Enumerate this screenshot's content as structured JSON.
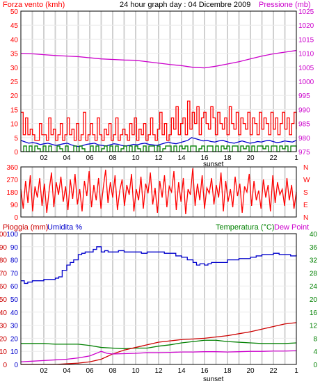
{
  "colors": {
    "red": "#ff0000",
    "blue": "#0000cc",
    "magenta": "#cc00cc",
    "green": "#008000",
    "darkred": "#cc0000",
    "grid": "#d0d0d0",
    "frame": "#000000"
  },
  "chart_data": [
    {
      "type": "line",
      "id": "wind_pressure",
      "title": "24 hour graph day : 04 Dicembre 2009",
      "left_label": "Forza vento (kmh)",
      "right_label": "Pressione (mb)",
      "x_label_marker": "sunset",
      "x_ticks": [
        "02",
        "04",
        "06",
        "08",
        "10",
        "12",
        "14",
        "16",
        "18",
        "20",
        "22",
        "1"
      ],
      "left_ticks": [
        "0",
        "5",
        "10",
        "15",
        "20",
        "25",
        "30",
        "35",
        "40",
        "45",
        "50"
      ],
      "right_ticks": [
        "975",
        "980",
        "985",
        "990",
        "995",
        "1000",
        "1005",
        "1010",
        "1015",
        "1020",
        "1025"
      ],
      "left_range": [
        0,
        50
      ],
      "right_range": [
        975,
        1025
      ],
      "series": [
        {
          "axis": "right",
          "style": "line",
          "color": "#cc00cc",
          "x": [
            0,
            1,
            2,
            3,
            4,
            5,
            6,
            7,
            8,
            9,
            10,
            11,
            12,
            13,
            14,
            15,
            16,
            17,
            18,
            19,
            20,
            21,
            22,
            23,
            24
          ],
          "values": [
            1010,
            1009.8,
            1009.5,
            1009.2,
            1009,
            1008.8,
            1008.4,
            1008,
            1007.8,
            1007.6,
            1007.5,
            1007,
            1006.5,
            1006,
            1005.6,
            1005,
            1004.8,
            1005.4,
            1006.2,
            1007,
            1008,
            1009,
            1009.8,
            1010.4,
            1011
          ]
        },
        {
          "axis": "left",
          "style": "step",
          "color": "#ff0000",
          "x_start": 0,
          "x_end": 24,
          "values": [
            14,
            6,
            12,
            6,
            8,
            6,
            4,
            4,
            10,
            6,
            6,
            4,
            12,
            6,
            8,
            4,
            6,
            10,
            4,
            6,
            12,
            6,
            8,
            4,
            10,
            4,
            6,
            14,
            4,
            6,
            10,
            6,
            4,
            12,
            6,
            4,
            8,
            6,
            10,
            4,
            6,
            12,
            4,
            6,
            8,
            6,
            4,
            10,
            6,
            12,
            4,
            8,
            6,
            10,
            4,
            6,
            12,
            6,
            4,
            8,
            14,
            6,
            10,
            4,
            6,
            12,
            8,
            16,
            6,
            10,
            12,
            6,
            18,
            8,
            14,
            10,
            16,
            6,
            12,
            14,
            10,
            8,
            16,
            12,
            6,
            14,
            10,
            8,
            12,
            6,
            16,
            10,
            8,
            14,
            6,
            12,
            10,
            8,
            14,
            6,
            12,
            10,
            6,
            14,
            8,
            12,
            10,
            6,
            14,
            8,
            12,
            6,
            10,
            14,
            8,
            12,
            6,
            10,
            14,
            8
          ]
        },
        {
          "axis": "left",
          "style": "line",
          "color": "#0000cc",
          "x_start": 0,
          "x_end": 24,
          "values": [
            4,
            3.5,
            3,
            3.2,
            3,
            2.5,
            2.8,
            3,
            2.6,
            2.2,
            2.5,
            2.8,
            3,
            2.4,
            2,
            1.8,
            2.2,
            2.6,
            2.8,
            3,
            2.4,
            2.2,
            2,
            2.4,
            2.8,
            2.6,
            2.2,
            2,
            2.2,
            2.6,
            2.4,
            2.8,
            3,
            2.6,
            2.4,
            2.2,
            2.6,
            3,
            3.4,
            3,
            2.8,
            3.2,
            3.6,
            4,
            5,
            4.6,
            4.2,
            3.8,
            4,
            3.6,
            3.4,
            3.8,
            4,
            3.6,
            3.2,
            3,
            3.4,
            3.8,
            3.4,
            3,
            3.2,
            3.6,
            3.4,
            3.8,
            4,
            3.6,
            3.2,
            3.4,
            3.8,
            3.6,
            3.4,
            4
          ]
        },
        {
          "axis": "left",
          "style": "step",
          "color": "#008000",
          "x_start": 0,
          "x_end": 24,
          "values": [
            0,
            2,
            0,
            2,
            0,
            2,
            1,
            0,
            2,
            0,
            2,
            0,
            0,
            2,
            1,
            0,
            2,
            0,
            0,
            2,
            0,
            2,
            1,
            0,
            0,
            2,
            0,
            2,
            0,
            1,
            2,
            0,
            2,
            0,
            2,
            0,
            1,
            2,
            0,
            2,
            0,
            2,
            1,
            0,
            2,
            0,
            2,
            2,
            0,
            2,
            0,
            1,
            2,
            2,
            0,
            2,
            0,
            2,
            1,
            2,
            0,
            2,
            2,
            0,
            1,
            2,
            0,
            2,
            2,
            0,
            2,
            0,
            2,
            1,
            2,
            0,
            2,
            2,
            0,
            2,
            1,
            2,
            0,
            2,
            0,
            2,
            2,
            1,
            2,
            0,
            2,
            2,
            0,
            2,
            1,
            2,
            0,
            2,
            2,
            0
          ]
        }
      ]
    },
    {
      "type": "line",
      "id": "direction",
      "left_ticks": [
        "0",
        "90",
        "180",
        "270",
        "360"
      ],
      "right_ticks": [
        "N",
        "E",
        "S",
        "W",
        "N"
      ],
      "left_range": [
        0,
        360
      ],
      "x_ticks": [],
      "series": [
        {
          "axis": "left",
          "style": "line",
          "color": "#ff0000",
          "x_start": 0,
          "x_end": 24,
          "values": [
            200,
            60,
            260,
            100,
            300,
            40,
            220,
            140,
            280,
            80,
            240,
            30,
            190,
            320,
            70,
            250,
            160,
            290,
            110,
            220,
            50,
            270,
            130,
            310,
            90,
            200,
            40,
            260,
            150,
            330,
            70,
            230,
            120,
            280,
            60,
            210,
            340,
            100,
            250,
            140,
            300,
            50,
            190,
            270,
            80,
            230,
            160,
            310,
            40,
            200,
            120,
            290,
            60,
            240,
            170,
            320,
            90,
            210,
            30,
            260,
            140,
            300,
            70,
            220,
            180,
            330,
            50,
            250,
            110,
            280,
            20,
            200,
            160,
            350,
            80,
            240,
            120,
            300,
            60,
            210,
            170,
            280,
            90,
            230,
            140,
            320,
            40,
            260,
            110,
            200,
            70,
            290,
            150,
            240,
            30,
            220,
            180,
            310,
            80,
            260,
            120,
            190,
            60,
            270,
            140,
            230,
            40,
            300,
            100,
            250,
            160,
            200,
            80,
            280,
            120,
            230,
            60,
            180
          ]
        }
      ]
    },
    {
      "type": "line",
      "id": "rain_hum_temp",
      "left_label_1": "Pioggia (mm)",
      "left_label_2": "Umidita %",
      "right_label_1": "Temperatura (°C)",
      "right_label_2": "Dew Point",
      "x_label_marker": "sunset",
      "x_ticks": [
        "02",
        "04",
        "06",
        "08",
        "10",
        "12",
        "14",
        "16",
        "18",
        "20",
        "22",
        "1"
      ],
      "left_ticks_rain": [
        "0",
        "10",
        "20",
        "30",
        "40",
        "50",
        "60",
        "70",
        "80",
        "90",
        "100"
      ],
      "left_ticks_hum": [
        "0",
        "10",
        "20",
        "30",
        "40",
        "50",
        "60",
        "70",
        "80",
        "90",
        "100"
      ],
      "right_ticks": [
        "0",
        "4",
        "8",
        "12",
        "16",
        "20",
        "24",
        "28",
        "32",
        "36",
        "40"
      ],
      "left_range": [
        0,
        100
      ],
      "right_range": [
        0,
        40
      ],
      "series": [
        {
          "axis": "left",
          "style": "step",
          "color": "#0000cc",
          "name_hint": "humidity",
          "x": [
            0,
            0.3,
            0.6,
            1,
            1.5,
            2,
            2.5,
            3,
            3.3,
            3.6,
            4,
            4.3,
            4.6,
            5,
            5.3,
            5.6,
            6,
            6.3,
            6.6,
            7,
            7.3,
            7.6,
            8,
            8.5,
            9,
            9.5,
            10,
            10.5,
            11,
            11.5,
            12,
            12.5,
            13,
            13.5,
            14,
            14.5,
            15,
            15.3,
            15.6,
            16,
            16.3,
            16.6,
            17,
            17.5,
            18,
            18.5,
            19,
            19.5,
            20,
            20.5,
            21,
            21.5,
            22,
            22.5,
            23,
            23.5,
            24
          ],
          "values": [
            64,
            62,
            63,
            64,
            64,
            65,
            65,
            66,
            67,
            72,
            76,
            78,
            80,
            84,
            85,
            86,
            86,
            88,
            90,
            86,
            87,
            86,
            86,
            87,
            86,
            86,
            86,
            85,
            86,
            86,
            86,
            85,
            85,
            83,
            82,
            80,
            78,
            76,
            77,
            76,
            77,
            78,
            78,
            78,
            80,
            80,
            81,
            81,
            82,
            83,
            84,
            84,
            85,
            84,
            84,
            83,
            84
          ]
        },
        {
          "axis": "right",
          "style": "line",
          "color": "#008000",
          "name_hint": "temperature",
          "x": [
            0,
            1,
            2,
            3,
            4,
            5,
            6,
            7,
            8,
            9,
            10,
            11,
            12,
            13,
            14,
            15,
            16,
            17,
            18,
            19,
            20,
            21,
            22,
            23,
            24
          ],
          "values": [
            6.4,
            6.4,
            6.4,
            6.2,
            6.2,
            6.2,
            5.8,
            5.2,
            5,
            4.8,
            5,
            5,
            5.6,
            6,
            6.6,
            7,
            7.4,
            7.4,
            7,
            6.8,
            6.6,
            6.4,
            6.4,
            6.4,
            6.6
          ]
        },
        {
          "axis": "left",
          "style": "line",
          "color": "#cc0000",
          "name_hint": "rain",
          "x": [
            0,
            1,
            2,
            3,
            4,
            5,
            6,
            7,
            8,
            9,
            10,
            11,
            12,
            13,
            14,
            15,
            16,
            17,
            18,
            19,
            20,
            21,
            22,
            23,
            24
          ],
          "values": [
            0,
            0,
            0,
            0,
            0.5,
            1,
            2,
            4,
            8,
            11,
            13,
            15,
            17,
            18,
            19,
            19.5,
            20,
            21,
            22,
            23.5,
            25,
            27,
            29,
            31,
            32
          ]
        },
        {
          "axis": "right",
          "style": "line",
          "color": "#cc00cc",
          "name_hint": "dew point",
          "x": [
            0,
            1,
            2,
            3,
            4,
            5,
            6,
            7,
            7.5,
            8,
            9,
            10,
            11,
            12,
            13,
            14,
            15,
            16,
            17,
            18,
            19,
            20,
            21,
            22,
            23,
            24
          ],
          "values": [
            0.8,
            1,
            1.2,
            1.4,
            1.6,
            2,
            2.6,
            4,
            3.4,
            3.2,
            3.3,
            3.4,
            3.6,
            3.6,
            3.7,
            3.8,
            3.8,
            3.9,
            3.9,
            3.8,
            3.9,
            4,
            4,
            4.1,
            4.1,
            4.2
          ]
        }
      ]
    }
  ]
}
